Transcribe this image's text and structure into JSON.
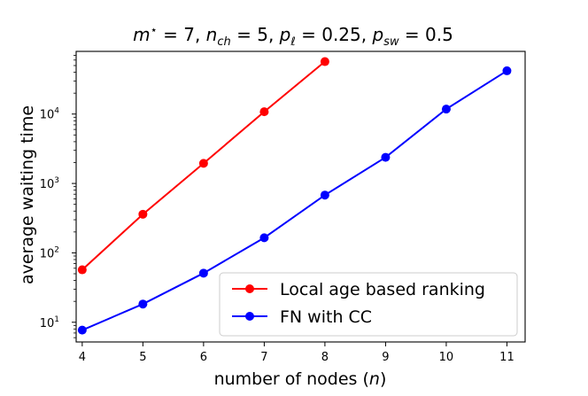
{
  "chart_data": {
    "type": "line",
    "title": "m* = 7, n_ch = 5, p_ℓ = 0.25, p_sw = 0.5",
    "title_parts": {
      "m": "m",
      "m_sup": "⋆",
      "m_val": " = 7, ",
      "n": "n",
      "n_sub": "ch",
      "n_val": " = 5, ",
      "p": "p",
      "p_l_sub": "ℓ",
      "p_l_val": " = 0.25, ",
      "p_sw_sub": "sw",
      "p_sw_val": " = 0.5"
    },
    "xlabel": "number of nodes (n)",
    "xlabel_parts": {
      "text": "number of nodes (",
      "var": "n",
      "close": ")"
    },
    "ylabel": "average waiting time",
    "y_scale": "log",
    "x_range": [
      3.9,
      11.3
    ],
    "y_range": [
      5.2,
      80000
    ],
    "x_ticks": [
      "4",
      "5",
      "6",
      "7",
      "8",
      "9",
      "10",
      "11"
    ],
    "y_ticks": [
      {
        "value": 10,
        "base": "10",
        "exp": "1"
      },
      {
        "value": 100,
        "base": "10",
        "exp": "2"
      },
      {
        "value": 1000,
        "base": "10",
        "exp": "3"
      },
      {
        "value": 10000,
        "base": "10",
        "exp": "4"
      }
    ],
    "grid": false,
    "legend_position": "lower-right",
    "series": [
      {
        "name": "Local age based ranking",
        "color": "#ff0000",
        "marker": "circle",
        "x": [
          4,
          5,
          6,
          7,
          8
        ],
        "y": [
          57,
          360,
          1950,
          10800,
          57000
        ]
      },
      {
        "name": "FN with CC",
        "color": "#0000ff",
        "marker": "circle",
        "x": [
          4,
          5,
          6,
          7,
          8,
          9,
          10,
          11
        ],
        "y": [
          7.7,
          18.3,
          51,
          165,
          680,
          2380,
          11800,
          42000
        ]
      }
    ]
  }
}
